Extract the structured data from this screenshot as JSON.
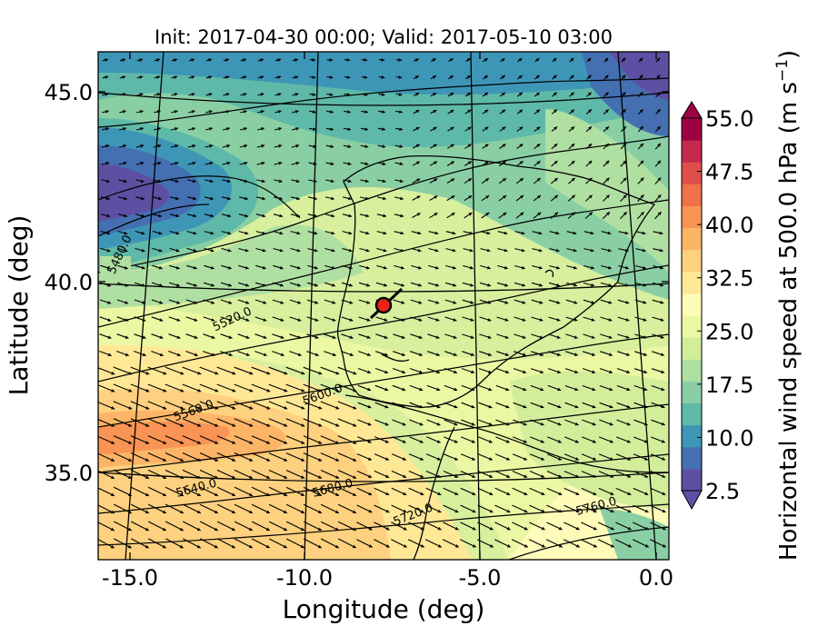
{
  "title": "Init: 2017-04-30 00:00; Valid: 2017-05-10 03:00",
  "x_axis": {
    "label": "Longitude (deg)",
    "ticks": [
      "-15.0",
      "-10.0",
      "-5.0",
      "0.0"
    ],
    "values": [
      -15,
      -10,
      -5,
      0
    ],
    "range": [
      -15.9,
      0.1
    ]
  },
  "y_axis": {
    "label": "Latitude (deg)",
    "ticks": [
      "35.0",
      "40.0",
      "45.0"
    ],
    "values": [
      35,
      40,
      45
    ],
    "range": [
      32.7,
      46.1
    ]
  },
  "colorbar": {
    "label_main": "Horizontal wind speed at 500.0 hPa (m s",
    "label_sup": "−1",
    "label_end": ")",
    "ticks": [
      "2.5",
      "10.0",
      "17.5",
      "25.0",
      "32.5",
      "40.0",
      "47.5",
      "55.0"
    ],
    "tick_values": [
      2.5,
      10,
      17.5,
      25,
      32.5,
      40,
      47.5,
      55
    ],
    "colors": [
      "#5e4fa2",
      "#4470b2",
      "#3e96b7",
      "#5fb9a8",
      "#8acfa4",
      "#b0dfa2",
      "#d3ee9b",
      "#ecf7a3",
      "#fffbb8",
      "#fee896",
      "#fdd17f",
      "#fcb566",
      "#f99455",
      "#f27148",
      "#de4f4a",
      "#c52a4d",
      "#9e0142"
    ]
  },
  "contour_labels": [
    "5480.0",
    "5520.0",
    "5560.0",
    "5600.0",
    "5640.0",
    "5680.0",
    "5720.0",
    "5760.0"
  ],
  "marker": {
    "name": "site-marker",
    "lon": -7.6,
    "lat": 39.35,
    "color": "#e8231a"
  },
  "wind_field": {
    "mean_direction": "westerly to south-westerly",
    "units": "m s-1"
  }
}
